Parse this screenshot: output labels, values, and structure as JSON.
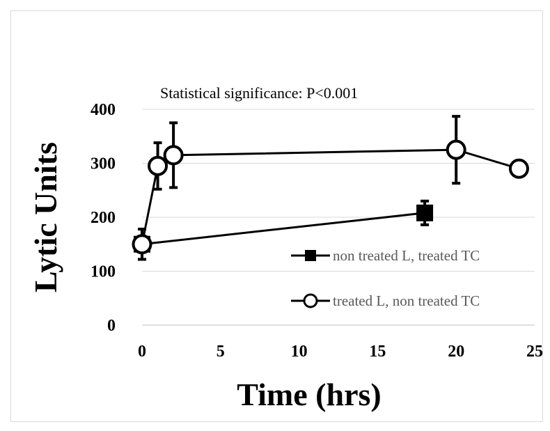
{
  "chart_data": {
    "type": "line",
    "title": "",
    "annotation": "Statistical significance: P<0.001",
    "xlabel": "Time (hrs)",
    "ylabel": "Lytic Units",
    "xlim": [
      0,
      25
    ],
    "ylim": [
      0,
      400
    ],
    "x_ticks": [
      0,
      5,
      10,
      15,
      20,
      25
    ],
    "y_ticks": [
      0,
      100,
      200,
      300,
      400
    ],
    "grid": {
      "horizontal": true,
      "vertical": false
    },
    "legend_position": "bottom-right",
    "series": [
      {
        "name": "non treated L, treated TC",
        "marker": "filled-square",
        "color": "#000000",
        "x": [
          0,
          18
        ],
        "y": [
          150,
          208
        ],
        "error": [
          28,
          22
        ]
      },
      {
        "name": "treated L, non treated TC",
        "marker": "open-circle",
        "color": "#000000",
        "x": [
          0,
          1,
          2,
          20,
          24
        ],
        "y": [
          150,
          295,
          315,
          325,
          290
        ],
        "error": [
          28,
          43,
          60,
          62,
          8
        ]
      }
    ]
  }
}
